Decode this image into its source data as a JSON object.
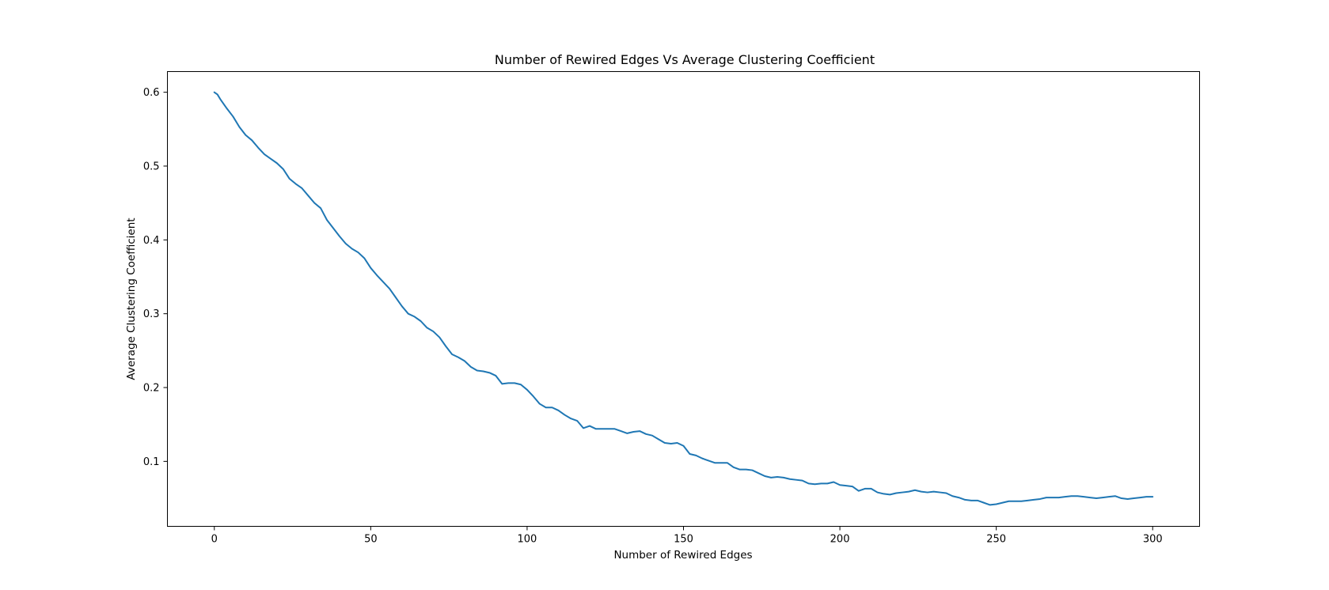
{
  "chart_data": {
    "type": "line",
    "title": "Number of Rewired Edges Vs Average Clustering Coefficient",
    "xlabel": "Number of Rewired Edges",
    "ylabel": "Average Clustering Coefficient",
    "xlim": [
      -15,
      315
    ],
    "ylim": [
      0.012,
      0.628
    ],
    "xticks": [
      0,
      50,
      100,
      150,
      200,
      250,
      300
    ],
    "xtick_labels": [
      "0",
      "50",
      "100",
      "150",
      "200",
      "250",
      "300"
    ],
    "yticks": [
      0.1,
      0.2,
      0.3,
      0.4,
      0.5,
      0.6
    ],
    "ytick_labels": [
      "0.1",
      "0.2",
      "0.3",
      "0.4",
      "0.5",
      "0.6"
    ],
    "grid": false,
    "legend": "none",
    "series": [
      {
        "color": "#1f77b4",
        "x": [
          0,
          1,
          2,
          4,
          6,
          8,
          10,
          12,
          14,
          16,
          18,
          20,
          22,
          24,
          26,
          28,
          30,
          32,
          34,
          36,
          38,
          40,
          42,
          44,
          46,
          48,
          50,
          52,
          54,
          56,
          58,
          60,
          62,
          64,
          66,
          68,
          70,
          72,
          74,
          76,
          78,
          80,
          82,
          84,
          86,
          88,
          90,
          92,
          94,
          96,
          98,
          100,
          102,
          104,
          106,
          108,
          110,
          112,
          114,
          116,
          118,
          120,
          122,
          124,
          126,
          128,
          130,
          132,
          134,
          136,
          138,
          140,
          142,
          144,
          146,
          148,
          150,
          152,
          154,
          156,
          158,
          160,
          162,
          164,
          166,
          168,
          170,
          172,
          174,
          176,
          178,
          180,
          182,
          184,
          186,
          188,
          190,
          192,
          194,
          196,
          198,
          200,
          202,
          204,
          206,
          208,
          210,
          212,
          214,
          216,
          218,
          220,
          222,
          224,
          226,
          228,
          230,
          232,
          234,
          236,
          238,
          240,
          242,
          244,
          246,
          248,
          250,
          252,
          254,
          256,
          258,
          260,
          262,
          264,
          266,
          268,
          270,
          272,
          274,
          276,
          278,
          280,
          282,
          284,
          286,
          288,
          290,
          292,
          294,
          296,
          298,
          300
        ],
        "y": [
          0.6,
          0.597,
          0.59,
          0.578,
          0.567,
          0.553,
          0.542,
          0.535,
          0.525,
          0.516,
          0.51,
          0.504,
          0.496,
          0.483,
          0.476,
          0.47,
          0.46,
          0.45,
          0.443,
          0.427,
          0.416,
          0.405,
          0.395,
          0.388,
          0.383,
          0.375,
          0.362,
          0.352,
          0.343,
          0.334,
          0.322,
          0.31,
          0.3,
          0.296,
          0.29,
          0.281,
          0.276,
          0.268,
          0.256,
          0.245,
          0.241,
          0.236,
          0.228,
          0.223,
          0.222,
          0.22,
          0.216,
          0.205,
          0.206,
          0.206,
          0.204,
          0.197,
          0.188,
          0.178,
          0.173,
          0.173,
          0.169,
          0.163,
          0.158,
          0.155,
          0.145,
          0.148,
          0.144,
          0.144,
          0.144,
          0.144,
          0.141,
          0.138,
          0.14,
          0.141,
          0.137,
          0.135,
          0.13,
          0.125,
          0.124,
          0.125,
          0.121,
          0.11,
          0.108,
          0.104,
          0.101,
          0.098,
          0.098,
          0.098,
          0.092,
          0.089,
          0.089,
          0.088,
          0.084,
          0.08,
          0.078,
          0.079,
          0.078,
          0.076,
          0.075,
          0.074,
          0.07,
          0.069,
          0.07,
          0.07,
          0.072,
          0.068,
          0.067,
          0.066,
          0.06,
          0.063,
          0.063,
          0.058,
          0.056,
          0.055,
          0.057,
          0.058,
          0.059,
          0.061,
          0.059,
          0.058,
          0.059,
          0.058,
          0.057,
          0.053,
          0.051,
          0.048,
          0.047,
          0.047,
          0.044,
          0.041,
          0.042,
          0.044,
          0.046,
          0.046,
          0.046,
          0.047,
          0.048,
          0.049,
          0.051,
          0.051,
          0.051,
          0.052,
          0.053,
          0.053,
          0.052,
          0.051,
          0.05,
          0.051,
          0.052,
          0.053,
          0.05,
          0.049,
          0.05,
          0.051,
          0.052,
          0.052
        ]
      }
    ]
  }
}
